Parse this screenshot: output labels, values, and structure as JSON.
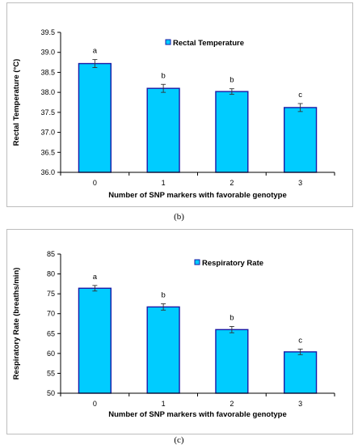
{
  "colors": {
    "bar_fill": "#00ccff",
    "bar_stroke": "#1a1aa6",
    "axis": "#000000"
  },
  "captions": {
    "b": "(b)",
    "c": "(c)"
  },
  "chart_data": [
    {
      "type": "bar",
      "panel": "b",
      "categories": [
        "0",
        "1",
        "2",
        "3"
      ],
      "series": [
        {
          "name": "Rectal Temperature",
          "values": [
            38.72,
            38.1,
            38.02,
            37.62
          ],
          "errors": [
            0.1,
            0.1,
            0.07,
            0.1
          ],
          "significance": [
            "a",
            "b",
            "b",
            "c"
          ]
        }
      ],
      "xlabel": "Number of SNP markers with favorable genotype",
      "ylabel": "Rectal Temperature (°C)",
      "ylim": [
        36.0,
        39.5
      ],
      "yticks": [
        36.0,
        36.5,
        37.0,
        37.5,
        38.0,
        38.5,
        39.0,
        39.5
      ],
      "ytick_labels": [
        "36.0",
        "36.5",
        "37.0",
        "37.5",
        "38.0",
        "38.5",
        "39.0",
        "39.5"
      ],
      "grid": false,
      "legend": "top-center"
    },
    {
      "type": "bar",
      "panel": "c",
      "categories": [
        "0",
        "1",
        "2",
        "3"
      ],
      "series": [
        {
          "name": "Respiratory Rate",
          "values": [
            76.4,
            71.7,
            66.0,
            60.4
          ],
          "errors": [
            0.7,
            0.8,
            0.8,
            0.7
          ],
          "significance": [
            "a",
            "b",
            "b",
            "c"
          ]
        }
      ],
      "xlabel": "Number of SNP markers with favorable genotype",
      "ylabel": "Respiratory Rate (breaths/min)",
      "ylim": [
        50,
        85
      ],
      "yticks": [
        50,
        55,
        60,
        65,
        70,
        75,
        80,
        85
      ],
      "ytick_labels": [
        "50",
        "55",
        "60",
        "65",
        "70",
        "75",
        "80",
        "85"
      ],
      "grid": false,
      "legend": "top-center"
    }
  ]
}
